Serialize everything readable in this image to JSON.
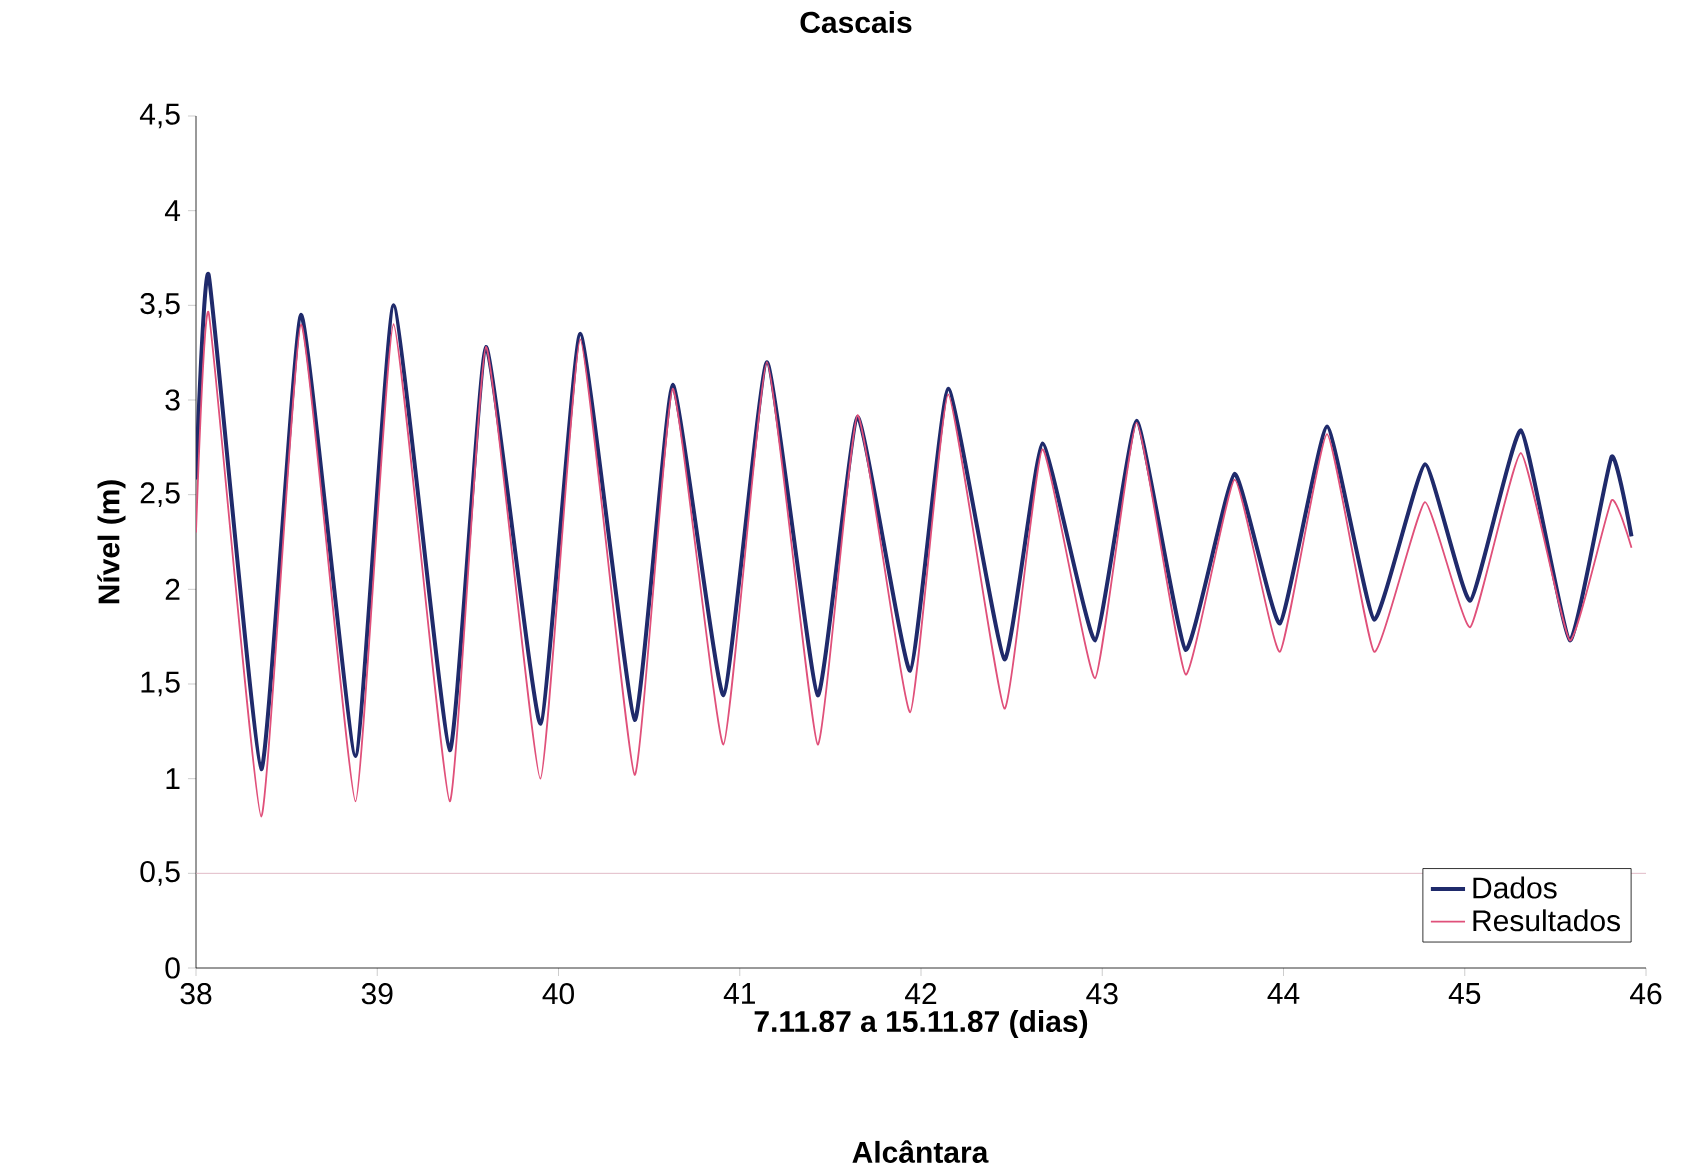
{
  "chart_data": {
    "type": "line",
    "title": "Cascais",
    "xlabel": "7.11.87 a 15.11.87 (dias)",
    "ylabel": "Nível (m)",
    "annotations": [
      "Alcântara"
    ],
    "x": [
      38.0,
      38.07,
      38.36,
      38.58,
      38.88,
      39.09,
      39.4,
      39.6,
      39.9,
      40.12,
      40.42,
      40.63,
      40.91,
      41.15,
      41.43,
      41.65,
      41.94,
      42.15,
      42.46,
      42.67,
      42.96,
      43.19,
      43.46,
      43.73,
      43.98,
      44.24,
      44.5,
      44.78,
      45.03,
      45.31,
      45.58,
      45.81,
      45.92
    ],
    "series": [
      {
        "name": "Dados",
        "color": "#1f2a6b",
        "values": [
          2.58,
          3.66,
          1.05,
          3.45,
          1.12,
          3.5,
          1.15,
          3.28,
          1.29,
          3.35,
          1.31,
          3.08,
          1.44,
          3.2,
          1.44,
          2.91,
          1.57,
          3.06,
          1.63,
          2.77,
          1.73,
          2.89,
          1.68,
          2.61,
          1.82,
          2.86,
          1.84,
          2.66,
          1.94,
          2.84,
          1.73,
          2.7,
          2.28
        ]
      },
      {
        "name": "Resultados",
        "color": "#e0507a",
        "values": [
          2.3,
          3.46,
          0.8,
          3.4,
          0.88,
          3.4,
          0.88,
          3.28,
          1.0,
          3.32,
          1.02,
          3.06,
          1.18,
          3.2,
          1.18,
          2.92,
          1.35,
          3.03,
          1.37,
          2.74,
          1.53,
          2.88,
          1.55,
          2.58,
          1.67,
          2.82,
          1.67,
          2.46,
          1.8,
          2.72,
          1.73,
          2.47,
          2.22
        ]
      }
    ],
    "xlim": [
      38,
      46
    ],
    "xticks": [
      38,
      39,
      40,
      41,
      42,
      43,
      44,
      45,
      46
    ],
    "ylim": [
      0,
      4.5
    ],
    "yticks": [
      0,
      {
        "value": 0.5,
        "label": "0,5"
      },
      1,
      {
        "value": 1.5,
        "label": "1,5"
      },
      2,
      {
        "value": 2.5,
        "label": "2,5"
      },
      3,
      {
        "value": 3.5,
        "label": "3,5"
      },
      4,
      {
        "value": 4.5,
        "label": "4,5"
      }
    ],
    "ref_lines": [
      {
        "axis": "y",
        "value": 0.5,
        "color": "#d8a8b8"
      }
    ],
    "legend": "bottom right",
    "grid": false,
    "marker": "none",
    "line_style": "solid"
  }
}
